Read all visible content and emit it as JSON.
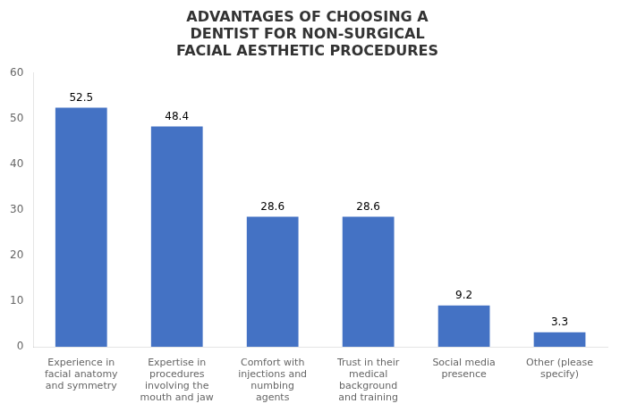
{
  "chart_data": {
    "type": "bar",
    "title": "ADVANTAGES OF CHOOSING A\nDENTIST FOR NON-SURGICAL\nFACIAL AESTHETIC PROCEDURES",
    "categories": [
      "Experience in\nfacial anatomy\nand symmetry",
      "Expertise in\nprocedures\ninvolving the\nmouth and jaw",
      "Comfort with\ninjections and\nnumbing\nagents",
      "Trust in their\nmedical\nbackground\nand training",
      "Social media\npresence",
      "Other (please\nspecify)"
    ],
    "values": [
      52.5,
      48.4,
      28.6,
      28.6,
      9.2,
      3.3
    ],
    "color": "#4472C4",
    "ylim": [
      0,
      60
    ],
    "yticks": [
      0,
      10,
      20,
      30,
      40,
      50,
      60
    ],
    "grid": false,
    "data_labels": true
  }
}
